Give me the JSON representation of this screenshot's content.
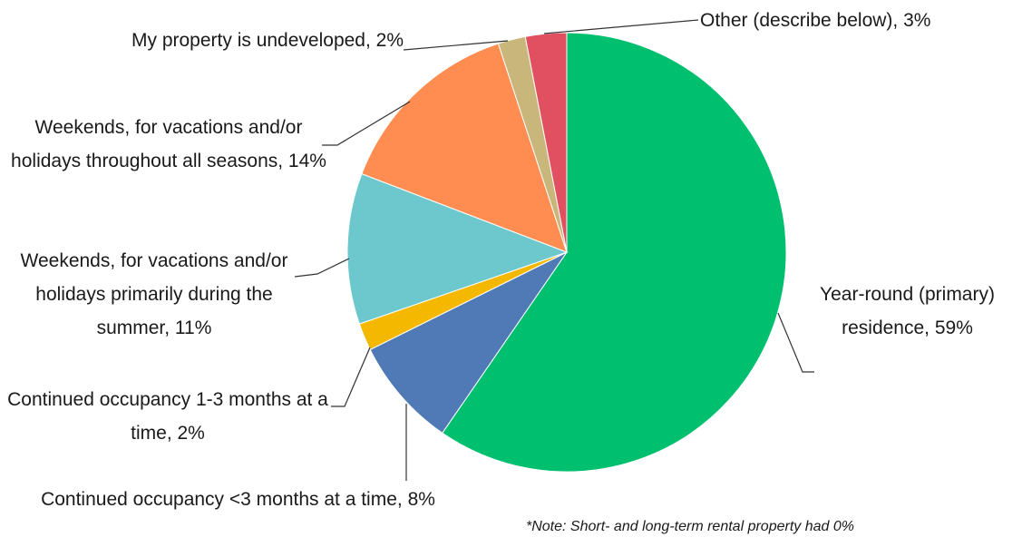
{
  "chart_data": {
    "type": "pie",
    "values": [
      59,
      8,
      2,
      11,
      14,
      2,
      3
    ],
    "value_labels": [
      "Year-round (primary) residence, 59%",
      "Continued occupancy <3 months at a time, 8%",
      "Continued occupancy 1-3 months at a time, 2%",
      "Weekends, for vacations and/or holidays primarily during the summer, 11%",
      "Weekends, for vacations and/or holidays throughout all seasons, 14%",
      "My property is undeveloped, 2%",
      "Other (describe below), 3%"
    ],
    "colors": [
      "#00bf6f",
      "#4f7ab5",
      "#f5b800",
      "#6cc8cc",
      "#ff8c50",
      "#c8b67a",
      "#e05060"
    ],
    "note": "*Note: Short- and long-term rental property had 0%"
  }
}
